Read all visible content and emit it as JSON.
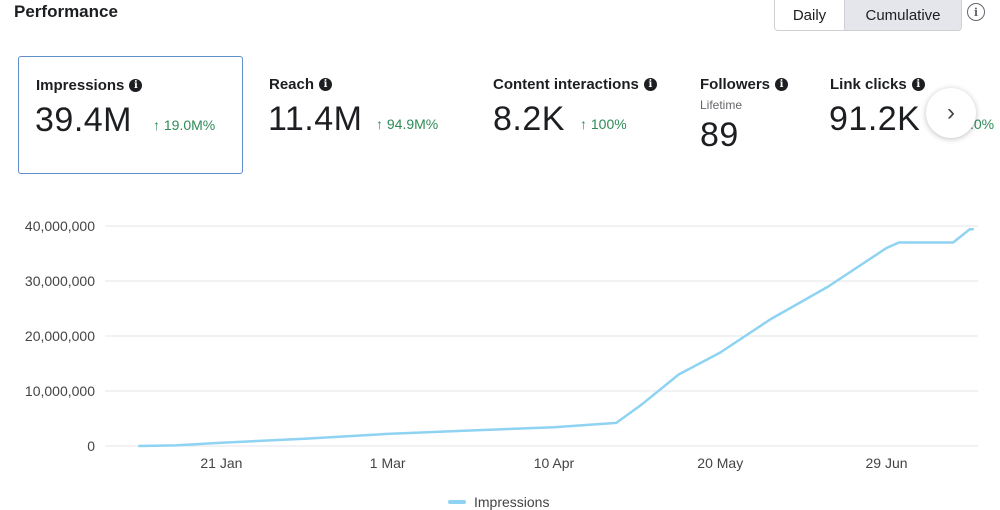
{
  "header": {
    "title": "Performance",
    "toggle": {
      "daily": "Daily",
      "cumulative": "Cumulative"
    },
    "info": "i"
  },
  "cards": [
    {
      "label": "Impressions",
      "value": "39.4M",
      "change": "↑ 19.0M%",
      "selected": true
    },
    {
      "label": "Reach",
      "value": "11.4M",
      "change": "↑ 94.9M%"
    },
    {
      "label": "Content interactions",
      "value": "8.2K",
      "change": "↑ 100%"
    },
    {
      "label": "Followers",
      "sublabel": "Lifetime",
      "value": "89"
    },
    {
      "label": "Link clicks",
      "value": "91.2K"
    }
  ],
  "info_glyph": "i",
  "next_button": "›",
  "partial_change": ".0%",
  "chart_data": {
    "type": "line",
    "y_ticks": [
      "40,000,000",
      "30,000,000",
      "20,000,000",
      "10,000,000",
      "0"
    ],
    "x_ticks": [
      "21 Jan",
      "1 Mar",
      "10 Apr",
      "20 May",
      "29 Jun"
    ],
    "ylim": [
      0,
      40000000
    ],
    "grid": true,
    "legend_position": "bottom",
    "series": [
      {
        "name": "Impressions",
        "color": "#8fd3f2",
        "points": [
          [
            "2024-01-01",
            0
          ],
          [
            "2024-01-10",
            100000
          ],
          [
            "2024-01-21",
            600000
          ],
          [
            "2024-02-10",
            1300000
          ],
          [
            "2024-03-01",
            2200000
          ],
          [
            "2024-03-20",
            2800000
          ],
          [
            "2024-04-10",
            3400000
          ],
          [
            "2024-04-25",
            4200000
          ],
          [
            "2024-05-01",
            7500000
          ],
          [
            "2024-05-10",
            13000000
          ],
          [
            "2024-05-20",
            17000000
          ],
          [
            "2024-06-01",
            23000000
          ],
          [
            "2024-06-15",
            29000000
          ],
          [
            "2024-06-29",
            36000000
          ],
          [
            "2024-07-02",
            37000000
          ],
          [
            "2024-07-10",
            37000000
          ],
          [
            "2024-07-15",
            37000000
          ],
          [
            "2024-07-19",
            39400000
          ],
          [
            "2024-07-20",
            39400000
          ]
        ]
      }
    ]
  }
}
